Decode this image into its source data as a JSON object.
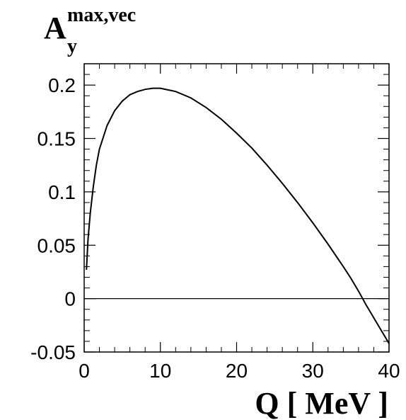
{
  "chart_data": {
    "type": "line",
    "title": "",
    "xlabel": "Q [ MeV ]",
    "ylabel_main": "A",
    "ylabel_sub": "y",
    "ylabel_sup": "max,vec",
    "xlim": [
      0,
      40
    ],
    "ylim": [
      -0.05,
      0.22
    ],
    "x_ticks": [
      "0",
      "10",
      "20",
      "30",
      "40"
    ],
    "y_ticks": [
      "-0.05",
      "0",
      "0.05",
      "0.1",
      "0.15",
      "0.2"
    ],
    "reference_line_y": 0,
    "series": [
      {
        "x": [
          0.3,
          0.5,
          0.8,
          1.2,
          1.6,
          2.0,
          3.0,
          4.0,
          5.0,
          6.0,
          7.0,
          8.0,
          9.0,
          10.0,
          12.0,
          14.0,
          16.0,
          18.0,
          20.0,
          22.0,
          24.0,
          26.0,
          28.0,
          30.0,
          32.0,
          34.0,
          35.0,
          36.0,
          37.0,
          38.0,
          39.0,
          40.0
        ],
        "y": [
          0.027,
          0.055,
          0.08,
          0.105,
          0.125,
          0.14,
          0.162,
          0.176,
          0.185,
          0.191,
          0.194,
          0.196,
          0.197,
          0.197,
          0.194,
          0.188,
          0.179,
          0.168,
          0.155,
          0.141,
          0.125,
          0.108,
          0.09,
          0.071,
          0.051,
          0.03,
          0.019,
          0.007,
          -0.006,
          -0.018,
          -0.03,
          -0.042
        ]
      }
    ]
  }
}
